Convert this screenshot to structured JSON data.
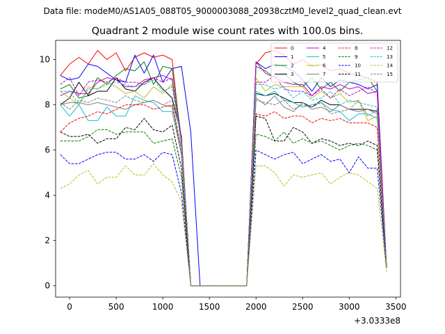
{
  "suptitle": "Data file: modeM0/AS1A05_088T05_9000003088_20938cztM0_level2_quad_clean.evt",
  "chart_data": {
    "type": "line",
    "title": "Quadrant 2 module wise count rates with 100.0s bins.",
    "xlabel": "",
    "ylabel": "",
    "x_offset_label": "+3.0333e8",
    "xlim": [
      -150,
      3550
    ],
    "ylim": [
      -0.5,
      10.85
    ],
    "xticks": [
      0,
      500,
      1000,
      1500,
      2000,
      2500,
      3000,
      3500
    ],
    "yticks": [
      0,
      2,
      4,
      6,
      8,
      10
    ],
    "x": [
      -100,
      0,
      100,
      200,
      300,
      400,
      500,
      600,
      700,
      800,
      900,
      1000,
      1100,
      1200,
      1300,
      1400,
      1500,
      1600,
      1700,
      1800,
      1900,
      2000,
      2100,
      2200,
      2300,
      2400,
      2500,
      2600,
      2700,
      2800,
      2900,
      3000,
      3100,
      3200,
      3300,
      3400
    ],
    "legend_position": "upper right",
    "series": [
      {
        "name": "0",
        "color": "#ff0000",
        "dash": "solid",
        "values": [
          9.3,
          9.8,
          10.1,
          9.8,
          10.4,
          10.0,
          10.3,
          9.5,
          10.1,
          10.3,
          10.1,
          10.2,
          10.0,
          6.2,
          0.0,
          0.0,
          0.0,
          0.0,
          0.0,
          0.0,
          0.0,
          9.8,
          10.3,
          10.4,
          10.2,
          9.8,
          10.0,
          9.7,
          9.8,
          9.5,
          9.6,
          9.4,
          9.3,
          9.2,
          9.0,
          0.9
        ]
      },
      {
        "name": "1",
        "color": "#0000ff",
        "dash": "solid",
        "values": [
          9.3,
          9.1,
          9.2,
          9.8,
          9.7,
          9.4,
          9.1,
          9.0,
          10.2,
          9.4,
          10.2,
          9.0,
          9.6,
          9.7,
          6.8,
          0.0,
          0.0,
          0.0,
          0.0,
          0.0,
          0.0,
          9.9,
          9.6,
          9.8,
          9.7,
          9.5,
          9.1,
          8.6,
          9.2,
          8.8,
          9.1,
          9.0,
          8.9,
          8.7,
          8.9,
          0.8
        ]
      },
      {
        "name": "2",
        "color": "#008000",
        "dash": "solid",
        "values": [
          8.7,
          8.9,
          8.3,
          8.4,
          9.2,
          8.9,
          9.3,
          9.6,
          9.5,
          9.9,
          8.9,
          9.7,
          9.6,
          6.5,
          0.0,
          0.0,
          0.0,
          0.0,
          0.0,
          0.0,
          0.0,
          9.7,
          9.5,
          9.2,
          9.4,
          9.0,
          8.8,
          9.2,
          8.7,
          9.0,
          8.6,
          9.0,
          9.1,
          9.2,
          8.6,
          0.8
        ]
      },
      {
        "name": "3",
        "color": "#000000",
        "dash": "solid",
        "values": [
          8.0,
          8.3,
          9.0,
          8.4,
          8.6,
          8.6,
          9.2,
          8.7,
          8.6,
          9.0,
          9.2,
          8.7,
          8.3,
          6.6,
          0.0,
          0.0,
          0.0,
          0.0,
          0.0,
          0.0,
          0.0,
          8.5,
          8.4,
          8.5,
          8.3,
          8.1,
          8.1,
          7.9,
          8.2,
          8.0,
          8.0,
          7.8,
          7.8,
          7.8,
          7.7,
          0.8
        ]
      },
      {
        "name": "4",
        "color": "#bf00bf",
        "dash": "solid",
        "values": [
          8.4,
          8.6,
          8.5,
          8.5,
          9.0,
          9.2,
          9.1,
          8.8,
          8.8,
          9.1,
          9.2,
          9.3,
          9.1,
          6.4,
          0.0,
          0.0,
          0.0,
          0.0,
          0.0,
          0.0,
          0.0,
          9.9,
          9.4,
          9.2,
          9.0,
          8.9,
          8.9,
          8.4,
          8.8,
          8.7,
          8.9,
          8.7,
          8.8,
          8.5,
          8.6,
          0.8
        ]
      },
      {
        "name": "5",
        "color": "#17becf",
        "dash": "solid",
        "values": [
          8.0,
          7.5,
          8.0,
          7.3,
          7.3,
          7.9,
          7.5,
          7.5,
          8.4,
          8.2,
          8.1,
          7.7,
          7.7,
          5.8,
          0.0,
          0.0,
          0.0,
          0.0,
          0.0,
          0.0,
          0.0,
          8.6,
          8.4,
          8.6,
          8.2,
          8.1,
          7.9,
          8.0,
          8.1,
          7.8,
          7.7,
          7.3,
          7.6,
          7.6,
          7.4,
          0.8
        ]
      },
      {
        "name": "6",
        "color": "#bcbd22",
        "dash": "solid",
        "values": [
          8.6,
          8.3,
          8.0,
          8.8,
          8.7,
          9.0,
          8.8,
          8.5,
          8.6,
          8.3,
          8.8,
          8.5,
          8.9,
          6.3,
          0.0,
          0.0,
          0.0,
          0.0,
          0.0,
          0.0,
          0.0,
          9.2,
          8.6,
          8.9,
          8.8,
          8.8,
          8.8,
          8.3,
          8.6,
          8.3,
          8.5,
          8.1,
          8.2,
          7.3,
          7.5,
          0.8
        ]
      },
      {
        "name": "7",
        "color": "#7f7f7f",
        "dash": "solid",
        "values": [
          8.0,
          8.1,
          8.1,
          8.0,
          8.1,
          8.0,
          7.9,
          7.8,
          8.0,
          8.1,
          8.2,
          8.0,
          7.9,
          6.1,
          0.0,
          0.0,
          0.0,
          0.0,
          0.0,
          0.0,
          0.0,
          8.3,
          8.0,
          8.4,
          7.9,
          7.7,
          8.1,
          7.8,
          7.9,
          7.7,
          8.0,
          7.8,
          7.7,
          7.8,
          7.6,
          0.8
        ]
      },
      {
        "name": "8",
        "color": "#ff0000",
        "dash": "dashed",
        "values": [
          6.8,
          7.2,
          7.4,
          7.5,
          7.7,
          7.6,
          7.8,
          8.0,
          8.0,
          8.0,
          7.8,
          7.9,
          8.0,
          5.8,
          0.0,
          0.0,
          0.0,
          0.0,
          0.0,
          0.0,
          0.0,
          7.6,
          7.5,
          7.7,
          7.4,
          7.5,
          7.5,
          7.2,
          7.4,
          7.3,
          7.4,
          7.2,
          7.2,
          7.2,
          7.0,
          0.8
        ]
      },
      {
        "name": "9",
        "color": "#008000",
        "dash": "dashed",
        "values": [
          6.4,
          6.4,
          6.4,
          6.6,
          6.9,
          6.9,
          6.7,
          6.8,
          6.8,
          6.8,
          6.3,
          6.4,
          6.5,
          4.8,
          0.0,
          0.0,
          0.0,
          0.0,
          0.0,
          0.0,
          0.0,
          6.7,
          6.6,
          6.4,
          6.8,
          6.3,
          6.5,
          6.3,
          6.4,
          6.2,
          6.0,
          6.2,
          6.3,
          6.2,
          6.0,
          0.8
        ]
      },
      {
        "name": "10",
        "color": "#0000ff",
        "dash": "dashed",
        "values": [
          5.8,
          5.4,
          5.4,
          5.6,
          5.8,
          5.9,
          5.9,
          5.6,
          5.6,
          5.8,
          5.5,
          5.9,
          5.8,
          4.1,
          0.0,
          0.0,
          0.0,
          0.0,
          0.0,
          0.0,
          0.0,
          6.0,
          5.8,
          5.6,
          5.8,
          5.9,
          5.4,
          5.6,
          5.8,
          5.5,
          5.6,
          5.0,
          5.7,
          5.2,
          5.2,
          0.8
        ]
      },
      {
        "name": "11",
        "color": "#000000",
        "dash": "dashed",
        "values": [
          6.8,
          6.6,
          6.6,
          6.7,
          6.3,
          6.5,
          6.5,
          7.0,
          6.9,
          7.4,
          6.9,
          6.8,
          7.1,
          5.2,
          0.0,
          0.0,
          0.0,
          0.0,
          0.0,
          0.0,
          0.0,
          7.5,
          7.4,
          6.4,
          6.4,
          7.0,
          6.8,
          6.3,
          6.5,
          6.4,
          6.2,
          6.3,
          6.2,
          6.4,
          6.2,
          0.8
        ]
      },
      {
        "name": "12",
        "color": "#bf00bf",
        "dash": "dashed",
        "values": [
          8.9,
          9.2,
          8.4,
          9.0,
          9.1,
          9.0,
          9.2,
          9.0,
          9.0,
          8.9,
          9.2,
          9.0,
          9.2,
          6.5,
          0.0,
          0.0,
          0.0,
          0.0,
          0.0,
          0.0,
          0.0,
          9.0,
          9.0,
          9.3,
          8.7,
          8.6,
          8.6,
          8.4,
          8.7,
          8.3,
          8.7,
          8.4,
          8.6,
          8.8,
          8.5,
          0.8
        ]
      },
      {
        "name": "13",
        "color": "#17becf",
        "dash": "dashed",
        "values": [
          8.6,
          8.6,
          8.0,
          8.7,
          8.7,
          8.9,
          9.0,
          8.9,
          8.8,
          8.9,
          9.1,
          8.6,
          8.8,
          6.3,
          0.0,
          0.0,
          0.0,
          0.0,
          0.0,
          0.0,
          0.0,
          8.9,
          8.9,
          8.7,
          8.8,
          8.3,
          8.6,
          8.2,
          8.3,
          8.6,
          8.0,
          8.2,
          8.1,
          8.0,
          7.9,
          0.8
        ]
      },
      {
        "name": "14",
        "color": "#bcbd22",
        "dash": "dashed",
        "values": [
          4.3,
          4.5,
          4.9,
          5.1,
          4.5,
          4.8,
          4.8,
          5.3,
          4.9,
          4.9,
          5.4,
          4.9,
          4.6,
          3.7,
          0.0,
          0.0,
          0.0,
          0.0,
          0.0,
          0.0,
          0.0,
          5.3,
          5.3,
          5.0,
          4.4,
          4.9,
          4.8,
          4.9,
          5.0,
          4.5,
          4.8,
          5.0,
          4.9,
          4.6,
          4.3,
          0.6
        ]
      },
      {
        "name": "15",
        "color": "#7f7f7f",
        "dash": "dashed",
        "values": [
          8.1,
          7.8,
          8.2,
          8.1,
          8.3,
          8.2,
          8.1,
          8.4,
          8.2,
          8.1,
          8.2,
          8.0,
          8.2,
          6.0,
          0.0,
          0.0,
          0.0,
          0.0,
          0.0,
          0.0,
          0.0,
          8.2,
          8.1,
          8.0,
          8.2,
          7.8,
          8.0,
          7.9,
          8.1,
          7.6,
          7.7,
          7.8,
          8.2,
          7.5,
          7.8,
          0.8
        ]
      }
    ]
  }
}
